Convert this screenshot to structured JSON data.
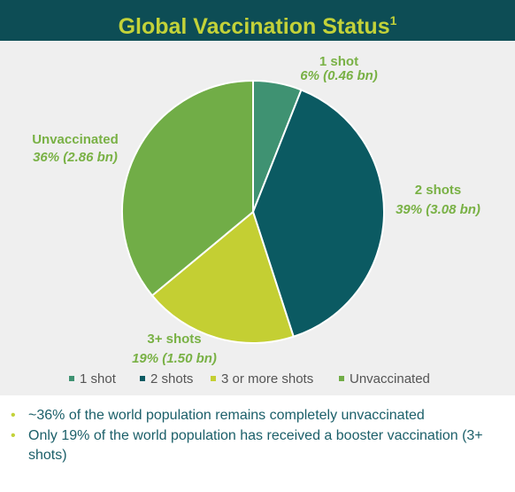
{
  "chart_data": {
    "type": "pie",
    "title": "Global Vaccination Status",
    "title_note": "1",
    "categories": [
      "1 shot",
      "2 shots",
      "3+ shots",
      "Unvaccinated"
    ],
    "values": [
      6,
      39,
      19,
      36
    ],
    "value_labels": [
      "6% (0.46 bn)",
      "39% (3.08 bn)",
      "19% (1.50 bn)",
      "36% (2.86 bn)"
    ],
    "legend": [
      "1 shot",
      "2 shots",
      "3 or more shots",
      "Unvaccinated"
    ],
    "colors": [
      "#3f9272",
      "#0b5a62",
      "#c4cf33",
      "#71ad47"
    ]
  },
  "bullets": [
    "~36% of the world population remains completely unvaccinated",
    "Only 19% of the world population has received a booster vaccination (3+ shots)"
  ]
}
